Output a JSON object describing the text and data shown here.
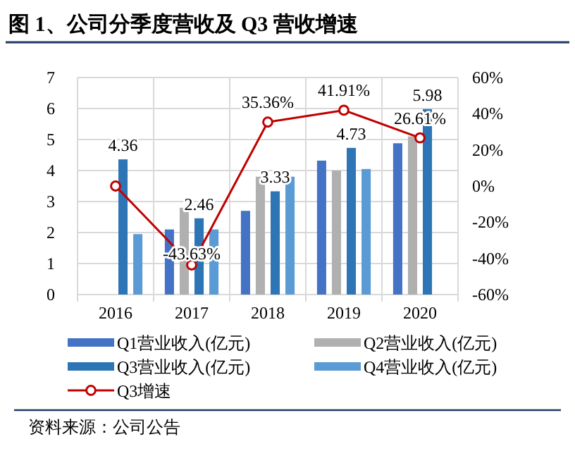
{
  "chart_data": {
    "type": "bar",
    "title": "图 1、公司分季度营收及 Q3 营收增速",
    "categories": [
      "2016",
      "2017",
      "2018",
      "2019",
      "2020"
    ],
    "series": [
      {
        "name": "Q1营业收入(亿元)",
        "color": "#4472c4",
        "values": [
          null,
          2.1,
          2.7,
          4.32,
          4.88
        ]
      },
      {
        "name": "Q2营业收入(亿元)",
        "color": "#b0b0b0",
        "values": [
          null,
          2.8,
          3.8,
          4.0,
          5.1
        ]
      },
      {
        "name": "Q3营业收入(亿元)",
        "color": "#2e75b6",
        "values": [
          4.36,
          2.46,
          3.33,
          4.73,
          5.98
        ],
        "value_labels": [
          "4.36",
          "2.46",
          "3.33",
          "4.73",
          "5.98"
        ]
      },
      {
        "name": "Q4营业收入(亿元)",
        "color": "#5b9bd5",
        "values": [
          1.95,
          2.1,
          3.8,
          4.05,
          null
        ]
      },
      {
        "name": "Q3增速",
        "type": "line",
        "axis": "y2",
        "marker": "circle",
        "color": "#c00000",
        "values": [
          0,
          -43.63,
          35.36,
          41.91,
          26.61
        ],
        "value_labels": [
          null,
          "-43.63%",
          "35.36%",
          "41.91%",
          "26.61%"
        ]
      }
    ],
    "ylim": [
      0,
      7
    ],
    "yticks": [
      0,
      1,
      2,
      3,
      4,
      5,
      6,
      7
    ],
    "y2lim": [
      -60,
      60
    ],
    "y2ticks": [
      {
        "value": -60,
        "label": "-60%"
      },
      {
        "value": -40,
        "label": "-40%"
      },
      {
        "value": -20,
        "label": "-20%"
      },
      {
        "value": 0,
        "label": "0%"
      },
      {
        "value": 20,
        "label": "20%"
      },
      {
        "value": 40,
        "label": "40%"
      },
      {
        "value": 60,
        "label": "60%"
      }
    ],
    "grid": true,
    "legend": "bottom",
    "annotations": [
      "资料来源：公司公告"
    ]
  }
}
